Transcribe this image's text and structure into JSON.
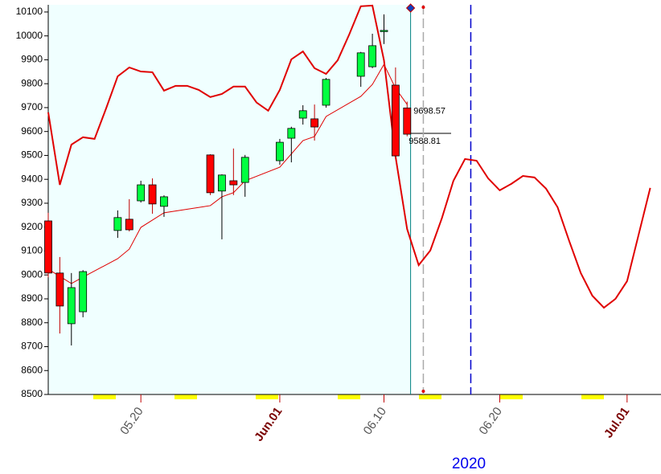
{
  "chart_data": {
    "type": "candlestick",
    "x_label": "2020",
    "xlim": [
      12,
      64.93
    ],
    "xticks": [
      {
        "value": 20,
        "label": "05.20",
        "color": "#555555"
      },
      {
        "value": 32,
        "label": "Jun.01",
        "color": "#7a0000"
      },
      {
        "value": 41,
        "label": "06.10",
        "color": "#555555"
      },
      {
        "value": 51,
        "label": "06.20",
        "color": "#555555"
      },
      {
        "value": 62,
        "label": "Jul.01",
        "color": "#7a0000"
      }
    ],
    "ylim": [
      8500,
      10130
    ],
    "yticks": [
      8500,
      8600,
      8700,
      8800,
      8900,
      9000,
      9100,
      9200,
      9300,
      9400,
      9500,
      9600,
      9700,
      9800,
      9900,
      10000,
      10100
    ],
    "candles": {
      "x": [
        12,
        13,
        14,
        15,
        18,
        19,
        20,
        21,
        22,
        26,
        27,
        28,
        29,
        32,
        33,
        34,
        35,
        36,
        39,
        40,
        41,
        42,
        43
      ],
      "open": [
        9226,
        9008,
        8796,
        8846,
        9186,
        9233,
        9310,
        9377,
        9287,
        9502,
        9351,
        9394,
        9387,
        9478,
        9572,
        9656,
        9653,
        9710,
        9831,
        9871,
        10018,
        9794,
        9698.57
      ],
      "high": [
        9260,
        9075,
        9008,
        9020,
        9270,
        9317,
        9394,
        9404,
        9333,
        9505,
        9421,
        9529,
        9502,
        9569,
        9620,
        9710,
        9713,
        9824,
        9933,
        10009,
        10090,
        9868,
        9725
      ],
      "low": [
        8990,
        8755,
        8705,
        8823,
        9155,
        9182,
        9303,
        9256,
        9243,
        9334,
        9149,
        9334,
        9327,
        9461,
        9471,
        9629,
        9562,
        9700,
        9787,
        9865,
        9966,
        9488,
        9580
      ],
      "close": [
        9008,
        8870,
        8947,
        9014,
        9240,
        9189,
        9377,
        9297,
        9327,
        9344,
        9418,
        9377,
        9492,
        9555,
        9613,
        9687,
        9619,
        9818,
        9929,
        9959,
        10023,
        9498,
        9588.81
      ],
      "up_color": "#00ff40",
      "down_color": "#ff0000"
    },
    "series": [
      {
        "color": "#e00000",
        "width": 1,
        "x": [
          12,
          14,
          15,
          18,
          19,
          20,
          22,
          26,
          27,
          28,
          29,
          32,
          34,
          35,
          36,
          39,
          40,
          41,
          42,
          43
        ],
        "values": [
          9024,
          8964,
          8991,
          9068,
          9108,
          9199,
          9260,
          9290,
          9327,
          9344,
          9394,
          9451,
          9562,
          9579,
          9663,
          9747,
          9797,
          9881,
          9781,
          9713
        ]
      },
      {
        "color": "#e00000",
        "width": 2,
        "x": [
          12,
          13,
          14,
          15,
          16,
          17,
          18,
          19,
          20,
          21,
          22,
          23,
          24,
          25,
          26,
          27,
          28,
          29,
          30,
          31,
          32,
          33,
          34,
          35,
          36,
          37,
          38,
          39,
          40,
          41,
          42,
          43,
          44,
          45,
          46,
          47,
          48,
          49,
          50,
          51,
          52,
          53,
          54,
          55,
          56,
          57,
          58,
          59,
          60,
          61,
          62,
          63,
          64
        ],
        "values": [
          9680,
          9377,
          9545,
          9576,
          9569,
          9697,
          9831,
          9868,
          9851,
          9848,
          9771,
          9791,
          9791,
          9774,
          9744,
          9757,
          9788,
          9788,
          9721,
          9687,
          9774,
          9902,
          9935,
          9865,
          9841,
          9898,
          10006,
          10124,
          10127,
          9898,
          9495,
          9192,
          9041,
          9102,
          9237,
          9394,
          9485,
          9478,
          9404,
          9354,
          9381,
          9414,
          9408,
          9361,
          9283,
          9142,
          9008,
          8913,
          8863,
          8900,
          8974,
          9169,
          9364
        ]
      }
    ],
    "vlines": [
      {
        "x": 43.3,
        "color": "#008080",
        "dash": false
      },
      {
        "x": 44.4,
        "color": "#aaaaaa",
        "dash": true
      },
      {
        "x": 48.5,
        "color": "#0000cc",
        "dash": true
      }
    ]
  }
}
